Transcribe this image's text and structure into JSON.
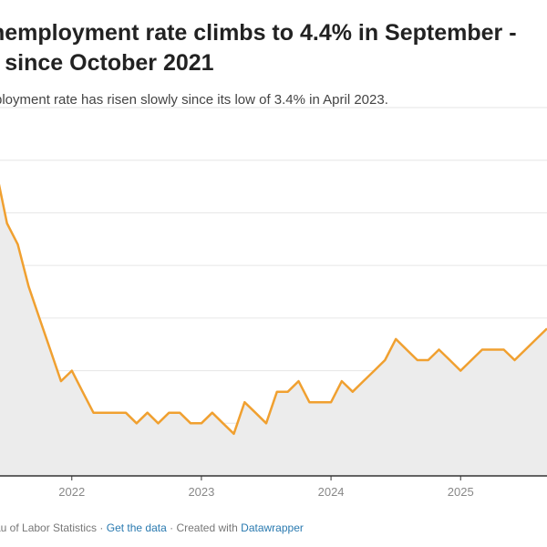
{
  "header": {
    "title_line1": "nemployment rate climbs to 4.4% in September -",
    "title_line2": "t since October 2021",
    "subtitle": "ployment rate has risen slowly since its low of 3.4% in April 2023."
  },
  "footer": {
    "source": "au of Labor Statistics",
    "sep1": " · ",
    "get_data": "Get the data",
    "sep2": " · Created with ",
    "credit": "Datawrapper"
  },
  "colors": {
    "line": "#f0a030",
    "area": "#ececec",
    "grid": "#e6e6e6",
    "axis": "#333333"
  },
  "chart_data": {
    "type": "area",
    "title": "nemployment rate climbs to 4.4% in September -",
    "xlabel": "",
    "ylabel": "",
    "x_ticks": [
      "2022",
      "2023",
      "2024",
      "2025"
    ],
    "xlim": [
      "2021-05",
      "2025-09"
    ],
    "ylim": [
      3.0,
      6.5
    ],
    "grid": true,
    "series": [
      {
        "x": [
          "2021-05",
          "2021-06",
          "2021-07",
          "2021-08",
          "2021-09",
          "2021-10",
          "2021-11",
          "2021-12",
          "2022-01",
          "2022-02",
          "2022-03",
          "2022-04",
          "2022-05",
          "2022-06",
          "2022-07",
          "2022-08",
          "2022-09",
          "2022-10",
          "2022-11",
          "2022-12",
          "2023-01",
          "2023-02",
          "2023-03",
          "2023-04",
          "2023-05",
          "2023-06",
          "2023-07",
          "2023-08",
          "2023-09",
          "2023-10",
          "2023-11",
          "2023-12",
          "2024-01",
          "2024-02",
          "2024-03",
          "2024-04",
          "2024-05",
          "2024-06",
          "2024-07",
          "2024-08",
          "2024-09",
          "2024-10",
          "2024-11",
          "2024-12",
          "2025-01",
          "2025-02",
          "2025-03",
          "2025-04",
          "2025-05",
          "2025-06",
          "2025-07",
          "2025-08",
          "2025-09"
        ],
        "values": [
          5.8,
          5.9,
          5.4,
          5.2,
          4.8,
          4.5,
          4.2,
          3.9,
          4.0,
          3.8,
          3.6,
          3.6,
          3.6,
          3.6,
          3.5,
          3.6,
          3.5,
          3.6,
          3.6,
          3.5,
          3.5,
          3.6,
          3.5,
          3.4,
          3.7,
          3.6,
          3.5,
          3.8,
          3.8,
          3.9,
          3.7,
          3.7,
          3.7,
          3.9,
          3.8,
          3.9,
          4.0,
          4.1,
          4.3,
          4.2,
          4.1,
          4.1,
          4.2,
          4.1,
          4.0,
          4.1,
          4.2,
          4.2,
          4.2,
          4.1,
          4.2,
          4.3,
          4.4
        ]
      }
    ]
  }
}
